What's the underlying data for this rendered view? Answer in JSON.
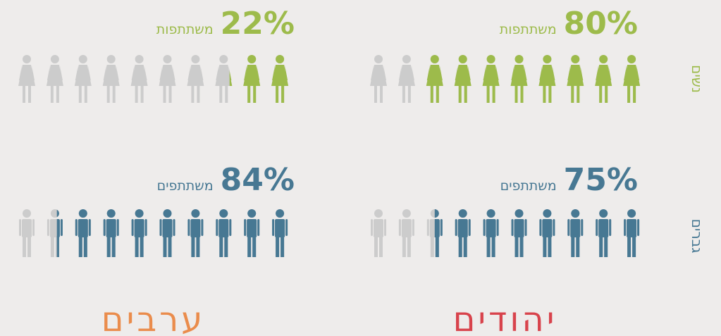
{
  "chart_data": {
    "type": "pictogram",
    "categories": [
      "יהודים",
      "ערבים"
    ],
    "category_colors": [
      "#d8434c",
      "#ea8c4c"
    ],
    "xlim": [
      0,
      100
    ],
    "series": [
      {
        "name": "נשים",
        "color": "#9dbb4b",
        "icon": "woman",
        "caption": "משתתפות",
        "values": [
          80,
          22
        ],
        "value_labels": [
          "80%",
          "22%"
        ]
      },
      {
        "name": "גברים",
        "color": "#477893",
        "icon": "man",
        "caption": "משתתפים",
        "values": [
          75,
          84
        ],
        "value_labels": [
          "75%",
          "84%"
        ]
      }
    ]
  }
}
